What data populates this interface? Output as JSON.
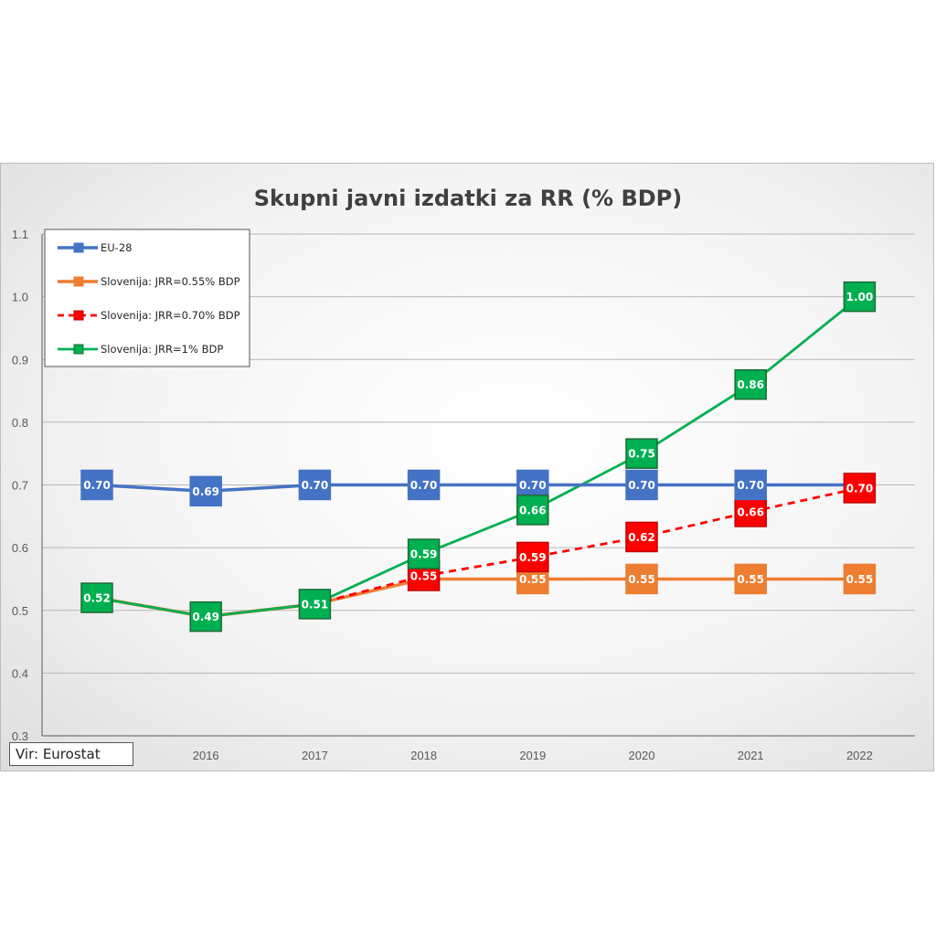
{
  "chart_data": {
    "type": "line",
    "title": "Skupni javni izdatki za RR (% BDP)",
    "xlabel": "",
    "ylabel": "",
    "x": [
      "2015",
      "2016",
      "2017",
      "2018",
      "2019",
      "2020",
      "2021",
      "2022"
    ],
    "x_tick_labels": [
      "",
      "2016",
      "2017",
      "2018",
      "2019",
      "2020",
      "2021",
      "2022"
    ],
    "ylim": [
      0.3,
      1.1
    ],
    "y_ticks": [
      0.3,
      0.4,
      0.5,
      0.6,
      0.7,
      0.8,
      0.9,
      1.0,
      1.1
    ],
    "y_tick_labels": [
      "0.3",
      "0.4",
      "0.5",
      "0.6",
      "0.7",
      "0.8",
      "0.9",
      "1.0",
      "1.1"
    ],
    "grid": true,
    "legend_position": "top-left",
    "series": [
      {
        "name": "EU-28",
        "color": "#4472c4",
        "dashed": false,
        "values": [
          0.7,
          0.69,
          0.7,
          0.7,
          0.7,
          0.7,
          0.7,
          0.7
        ],
        "labels": [
          "0.70",
          "0.69",
          "0.70",
          "0.70",
          "0.70",
          "0.70",
          "0.70",
          ""
        ]
      },
      {
        "name": "Slovenija: JRR=0.55% BDP",
        "color": "#ed7d31",
        "dashed": false,
        "values": [
          0.52,
          0.49,
          0.51,
          0.55,
          0.55,
          0.55,
          0.55,
          0.55
        ],
        "labels": [
          "",
          "",
          "",
          "",
          "0.55",
          "0.55",
          "0.55",
          "0.55"
        ]
      },
      {
        "name": "Slovenija: JRR=0.70% BDP",
        "color": "#ff0000",
        "dashed": true,
        "values": [
          0.52,
          0.49,
          0.51,
          0.555,
          0.585,
          0.617,
          0.657,
          0.695
        ],
        "labels": [
          "",
          "",
          "",
          "0.55",
          "0.59",
          "0.62",
          "0.66",
          "0.70"
        ]
      },
      {
        "name": "Slovenija: JRR=1% BDP",
        "color": "#00b050",
        "dashed": false,
        "values": [
          0.52,
          0.49,
          0.51,
          0.59,
          0.66,
          0.75,
          0.86,
          1.0
        ],
        "labels": [
          "0.52",
          "0.49",
          "0.51",
          "0.59",
          "0.66",
          "0.75",
          "0.86",
          "1.00"
        ]
      }
    ]
  },
  "source_note": "Vir: Eurostat"
}
